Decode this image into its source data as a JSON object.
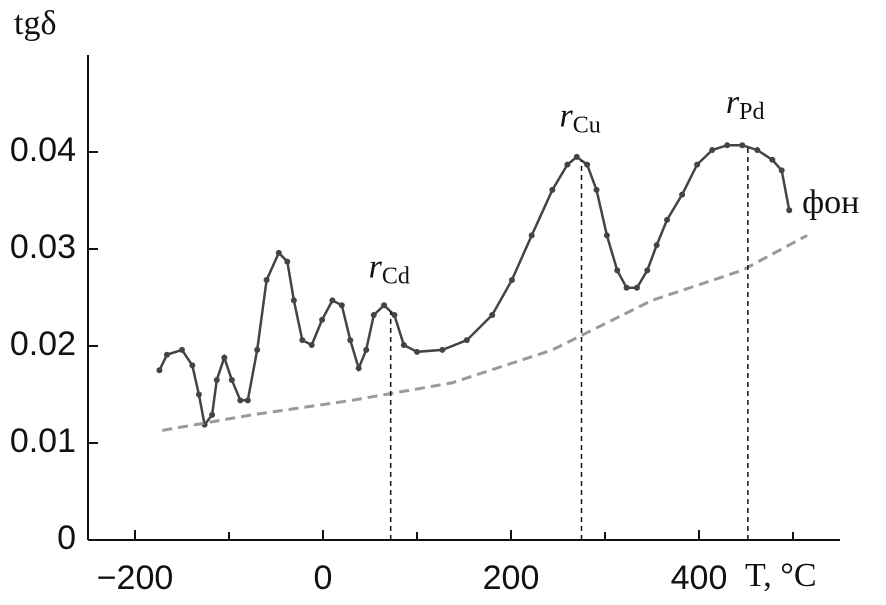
{
  "chart_data": {
    "type": "line",
    "y_label": "tgδ",
    "x_label": "T, °C",
    "xlim": [
      -250,
      550
    ],
    "ylim": [
      0,
      0.05
    ],
    "xticks": [
      {
        "value": -200,
        "label": "−200"
      },
      0,
      200,
      400
    ],
    "xminor_ticks": [
      -100,
      100,
      300,
      500
    ],
    "yticks": [
      0,
      0.01,
      0.02,
      0.03,
      0.04
    ],
    "series": [
      {
        "color": "#444444",
        "style": "solid-dots",
        "x": [
          -174,
          -166,
          -150,
          -139,
          -132,
          -126,
          -118,
          -113,
          -105,
          -97,
          -88,
          -80,
          -70,
          -60,
          -47,
          -38,
          -31,
          -22,
          -12,
          -1,
          10,
          20,
          29,
          38,
          46,
          54,
          65,
          76,
          86,
          100,
          127,
          153,
          180,
          201,
          222,
          244,
          260,
          270,
          281,
          291,
          302,
          313,
          323,
          334,
          345,
          355,
          366,
          382,
          398,
          414,
          430,
          446,
          462,
          478,
          488,
          496
        ],
        "values": [
          0.0175,
          0.0191,
          0.0196,
          0.018,
          0.015,
          0.0119,
          0.0129,
          0.0165,
          0.0188,
          0.0165,
          0.0144,
          0.0144,
          0.0196,
          0.0268,
          0.0296,
          0.0287,
          0.0247,
          0.0206,
          0.0201,
          0.0227,
          0.0247,
          0.0242,
          0.0206,
          0.0177,
          0.0196,
          0.0232,
          0.0242,
          0.0232,
          0.0201,
          0.0194,
          0.0196,
          0.0206,
          0.0232,
          0.0268,
          0.0314,
          0.0361,
          0.0387,
          0.0395,
          0.0387,
          0.0361,
          0.0314,
          0.0278,
          0.026,
          0.026,
          0.0278,
          0.0304,
          0.033,
          0.0356,
          0.0387,
          0.0402,
          0.0407,
          0.0407,
          0.0402,
          0.0392,
          0.0381,
          0.034
        ]
      },
      {
        "name": "фон",
        "color": "#9a9a9a",
        "style": "dashed",
        "x": [
          -171,
          -76,
          31,
          137,
          244,
          350,
          446,
          515
        ],
        "values": [
          0.0113,
          0.0129,
          0.0144,
          0.0162,
          0.0196,
          0.0247,
          0.0278,
          0.0314
        ]
      }
    ],
    "markers": [
      {
        "x": 72,
        "label": "r",
        "subscript": "Cd"
      },
      {
        "x": 275,
        "label": "r",
        "subscript": "Cu"
      },
      {
        "x": 452,
        "label": "r",
        "subscript": "Pd"
      }
    ]
  }
}
